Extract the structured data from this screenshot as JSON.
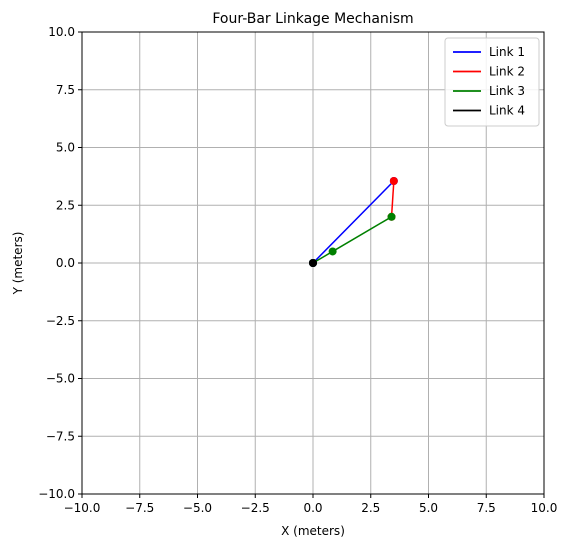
{
  "chart_data": {
    "type": "line",
    "title": "Four-Bar Linkage Mechanism",
    "xlabel": "X (meters)",
    "ylabel": "Y (meters)",
    "xlim": [
      -10,
      10
    ],
    "ylim": [
      -10,
      10
    ],
    "xticks": [
      -10,
      -7.5,
      -5,
      -2.5,
      0,
      2.5,
      5,
      7.5,
      10
    ],
    "yticks": [
      -10,
      -7.5,
      -5,
      -2.5,
      0,
      2.5,
      5,
      7.5,
      10
    ],
    "xtick_labels": [
      "−10.0",
      "−7.5",
      "−5.0",
      "−2.5",
      "0.0",
      "2.5",
      "5.0",
      "7.5",
      "10.0"
    ],
    "ytick_labels": [
      "−10.0",
      "−7.5",
      "−5.0",
      "−2.5",
      "0.0",
      "2.5",
      "5.0",
      "7.5",
      "10.0"
    ],
    "grid": true,
    "legend_position": "top-right",
    "series": [
      {
        "name": "Link 1",
        "color": "#0000ff",
        "points": [
          [
            0,
            0
          ],
          [
            3.5,
            3.55
          ]
        ]
      },
      {
        "name": "Link 2",
        "color": "#ff0000",
        "points": [
          [
            3.5,
            3.55
          ],
          [
            3.4,
            2.0
          ]
        ]
      },
      {
        "name": "Link 3",
        "color": "#008000",
        "points": [
          [
            0,
            0
          ],
          [
            0.85,
            0.5
          ],
          [
            3.4,
            2.0
          ]
        ]
      },
      {
        "name": "Link 4",
        "color": "#000000",
        "points": [
          [
            0,
            0
          ],
          [
            0,
            0
          ]
        ]
      }
    ]
  }
}
